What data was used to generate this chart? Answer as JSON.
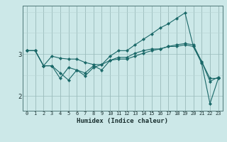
{
  "xlabel": "Humidex (Indice chaleur)",
  "bg_color": "#cce8e8",
  "line_color": "#1a6868",
  "grid_color_major": "#9bbcbc",
  "grid_color_minor": "#b8d4d4",
  "x_ticks": [
    0,
    1,
    2,
    3,
    4,
    5,
    6,
    7,
    8,
    9,
    10,
    11,
    12,
    13,
    14,
    15,
    16,
    17,
    18,
    19,
    20,
    21,
    22,
    23
  ],
  "y_ticks": [
    2,
    3
  ],
  "xlim": [
    -0.5,
    23.5
  ],
  "ylim": [
    1.65,
    4.15
  ],
  "series": [
    [
      3.08,
      3.08,
      2.72,
      2.72,
      2.55,
      2.38,
      2.62,
      2.55,
      2.72,
      2.62,
      2.85,
      2.92,
      2.92,
      3.02,
      3.08,
      3.12,
      3.12,
      3.18,
      3.18,
      3.22,
      3.18,
      2.82,
      2.35,
      2.45
    ],
    [
      3.08,
      3.08,
      2.72,
      2.95,
      2.9,
      2.88,
      2.88,
      2.8,
      2.75,
      2.75,
      2.85,
      2.88,
      2.88,
      2.95,
      3.02,
      3.08,
      3.12,
      3.18,
      3.22,
      3.25,
      3.22,
      2.82,
      2.42,
      2.42
    ],
    [
      3.08,
      3.08,
      2.72,
      2.72,
      2.42,
      2.68,
      2.62,
      2.48,
      2.68,
      2.75,
      2.95,
      3.08,
      3.08,
      3.22,
      3.35,
      3.48,
      3.62,
      3.72,
      3.85,
      3.98,
      3.18,
      2.78,
      1.82,
      2.42
    ]
  ]
}
